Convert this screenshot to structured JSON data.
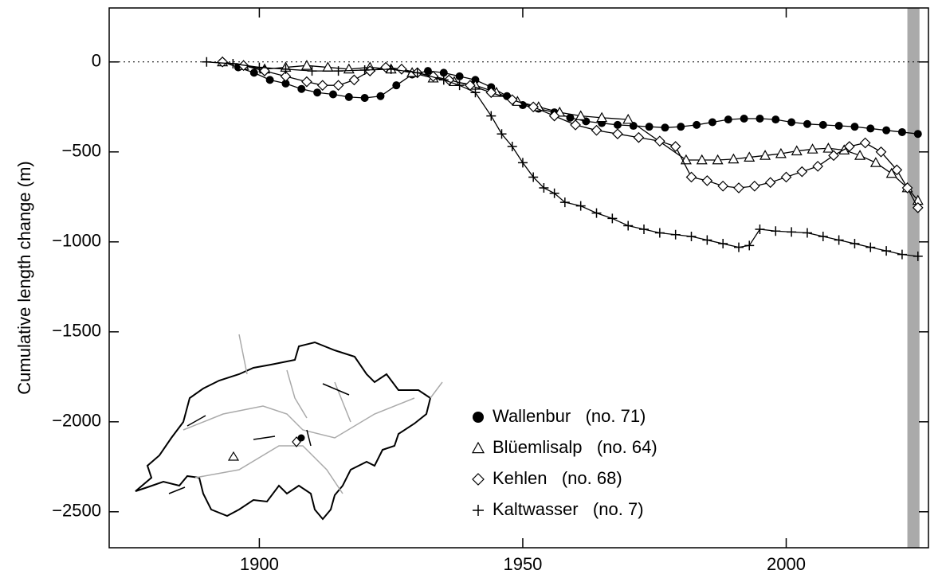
{
  "chart_data": {
    "type": "line",
    "ylabel": "Cumulative length change  (m)",
    "xlim": [
      1871.5,
      2027
    ],
    "ylim": [
      -2700,
      300
    ],
    "xticks": [
      1900,
      1950,
      2000
    ],
    "yticks": [
      {
        "value": -2500,
        "label": "−2500"
      },
      {
        "value": -2000,
        "label": "−2000"
      },
      {
        "value": -1500,
        "label": "−1500"
      },
      {
        "value": -1000,
        "label": "−1000"
      },
      {
        "value": -500,
        "label": "−500"
      },
      0
    ],
    "zero_line": true,
    "shaded_xspan": [
      2023,
      2025.3
    ],
    "shaded_color": "#aaaaaa",
    "series": [
      {
        "name": "Wallenbur   (no. 71)",
        "marker": "circle",
        "color": "#000000",
        "x": [
          1893,
          1896,
          1899,
          1902,
          1905,
          1908,
          1911,
          1914,
          1917,
          1920,
          1923,
          1926,
          1929,
          1932,
          1935,
          1938,
          1941,
          1944,
          1947,
          1950,
          1953,
          1956,
          1959,
          1962,
          1965,
          1968,
          1971,
          1974,
          1977,
          1980,
          1983,
          1986,
          1989,
          1992,
          1995,
          1998,
          2001,
          2004,
          2007,
          2010,
          2013,
          2016,
          2019,
          2022,
          2025
        ],
        "values": [
          0,
          -30,
          -60,
          -100,
          -120,
          -150,
          -170,
          -180,
          -195,
          -200,
          -190,
          -130,
          -70,
          -50,
          -60,
          -80,
          -100,
          -140,
          -190,
          -240,
          -260,
          -280,
          -310,
          -330,
          -340,
          -350,
          -355,
          -360,
          -365,
          -360,
          -350,
          -335,
          -320,
          -315,
          -315,
          -320,
          -335,
          -345,
          -350,
          -355,
          -360,
          -370,
          -380,
          -390,
          -400
        ]
      },
      {
        "name": "Blüemlisalp   (no. 64)",
        "marker": "triangle",
        "color": "#000000",
        "x": [
          1893,
          1897,
          1901,
          1905,
          1909,
          1913,
          1917,
          1921,
          1925,
          1929,
          1933,
          1937,
          1941,
          1945,
          1949,
          1953,
          1957,
          1961,
          1965,
          1970,
          1981,
          1984,
          1987,
          1990,
          1993,
          1996,
          1999,
          2002,
          2005,
          2008,
          2011,
          2014,
          2017,
          2020,
          2023,
          2025
        ],
        "values": [
          0,
          -20,
          -40,
          -30,
          -20,
          -30,
          -40,
          -30,
          -40,
          -60,
          -90,
          -110,
          -130,
          -170,
          -220,
          -250,
          -280,
          -300,
          -310,
          -320,
          -545,
          -545,
          -545,
          -540,
          -530,
          -520,
          -510,
          -495,
          -485,
          -480,
          -490,
          -520,
          -560,
          -620,
          -700,
          -770
        ]
      },
      {
        "name": "Kehlen   (no. 68)",
        "marker": "diamond",
        "color": "#000000",
        "x": [
          1893,
          1897,
          1901,
          1905,
          1909,
          1912,
          1915,
          1918,
          1921,
          1924,
          1927,
          1930,
          1933,
          1936,
          1940,
          1944,
          1948,
          1952,
          1956,
          1960,
          1964,
          1968,
          1972,
          1976,
          1979,
          1982,
          1985,
          1988,
          1991,
          1994,
          1997,
          2000,
          2003,
          2006,
          2009,
          2012,
          2015,
          2018,
          2021,
          2023,
          2025
        ],
        "values": [
          0,
          -20,
          -50,
          -80,
          -110,
          -130,
          -130,
          -100,
          -50,
          -30,
          -40,
          -60,
          -80,
          -100,
          -130,
          -170,
          -210,
          -250,
          -300,
          -350,
          -380,
          -400,
          -420,
          -440,
          -470,
          -640,
          -660,
          -690,
          -700,
          -690,
          -670,
          -640,
          -610,
          -580,
          -520,
          -470,
          -450,
          -500,
          -600,
          -700,
          -810
        ]
      },
      {
        "name": "Kaltwasser   (no. 7)",
        "marker": "plus",
        "color": "#000000",
        "x": [
          1890,
          1895,
          1900,
          1905,
          1910,
          1915,
          1920,
          1925,
          1930,
          1935,
          1938,
          1941,
          1944,
          1946,
          1948,
          1950,
          1952,
          1954,
          1956,
          1958,
          1961,
          1964,
          1967,
          1970,
          1973,
          1976,
          1979,
          1982,
          1985,
          1988,
          1991,
          1993,
          1995,
          1998,
          2001,
          2004,
          2007,
          2010,
          2013,
          2016,
          2019,
          2022,
          2025
        ],
        "values": [
          0,
          -10,
          -30,
          -40,
          -50,
          -50,
          -45,
          -40,
          -60,
          -100,
          -130,
          -170,
          -300,
          -400,
          -470,
          -560,
          -640,
          -700,
          -730,
          -780,
          -800,
          -840,
          -870,
          -910,
          -930,
          -950,
          -960,
          -970,
          -990,
          -1010,
          -1030,
          -1020,
          -930,
          -940,
          -945,
          -950,
          -970,
          -990,
          -1010,
          -1030,
          -1050,
          -1070,
          -1080
        ]
      }
    ]
  }
}
